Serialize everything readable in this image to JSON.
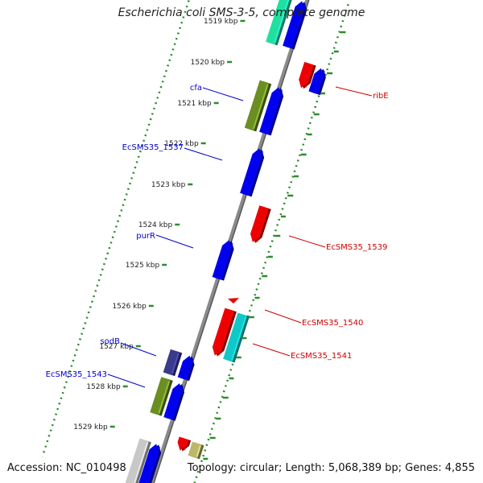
{
  "title": "Escherichia coli SMS-3-5, complete genome",
  "footer": {
    "accession": "Accession: NC_010498",
    "summary": "Topology: circular; Length: 5,068,389 bp; Genes: 4,855"
  },
  "ticks": [
    {
      "label": "1519 kbp"
    },
    {
      "label": "1520 kbp"
    },
    {
      "label": "1521 kbp"
    },
    {
      "label": "1522 kbp"
    },
    {
      "label": "1523 kbp"
    },
    {
      "label": "1524 kbp"
    },
    {
      "label": "1525 kbp"
    },
    {
      "label": "1526 kbp"
    },
    {
      "label": "1527 kbp"
    },
    {
      "label": "1528 kbp"
    },
    {
      "label": "1529 kbp"
    }
  ],
  "gene_labels": [
    {
      "name": "cfa",
      "color": "#0000cc"
    },
    {
      "name": "ribE",
      "color": "#cc0000"
    },
    {
      "name": "EcSMS35_1537",
      "color": "#0000cc"
    },
    {
      "name": "purR",
      "color": "#0000cc"
    },
    {
      "name": "EcSMS35_1539",
      "color": "#cc0000"
    },
    {
      "name": "EcSMS35_1540",
      "color": "#cc0000"
    },
    {
      "name": "sodB",
      "color": "#0000cc"
    },
    {
      "name": "EcSMS35_1541",
      "color": "#cc0000"
    },
    {
      "name": "EcSMS35_1543",
      "color": "#0000cc"
    }
  ],
  "colors": {
    "backbone": "#8a8a8a",
    "dots": "#2e8b2e",
    "blue": "#0000ee",
    "red": "#ee0000",
    "olive": "#6b8e23",
    "cyan": "#10c8c8",
    "teal": "#20e0a0",
    "navy": "#3a3a8c",
    "gray": "#c8c8c8",
    "khaki": "#bdb76b"
  }
}
